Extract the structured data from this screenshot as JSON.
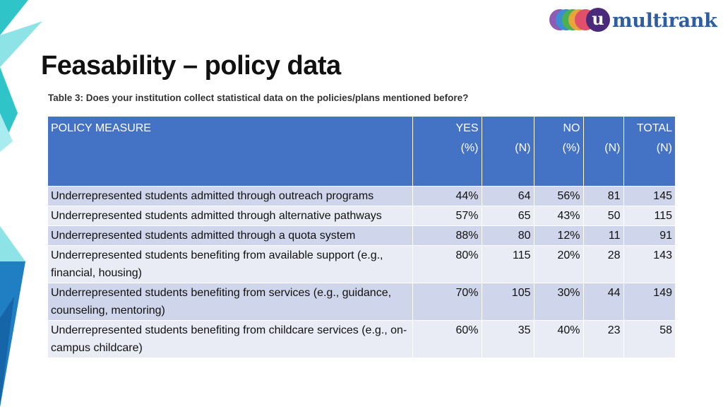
{
  "slide": {
    "title": "Feasability – policy data",
    "caption": "Table 3: Does your institution collect statistical data on the policies/plans mentioned before?"
  },
  "logo": {
    "mark": "u",
    "text": "multirank",
    "circle_colors": [
      "#8e5bb5",
      "#3c8ed4",
      "#4bb050",
      "#e8a63a",
      "#e24f6a"
    ],
    "mark_color": "#4a2a7a",
    "text_color": "#2e5e9e"
  },
  "colors": {
    "header_bg": "#4472c4",
    "row_odd": "#cfd5ea",
    "row_even": "#e9ebf5",
    "decor_teal": "#2ec4c8",
    "decor_blue": "#1f7fc2"
  },
  "table": {
    "headers": [
      {
        "line1": "POLICY MEASURE",
        "line2": ""
      },
      {
        "line1": "YES",
        "line2": "(%)"
      },
      {
        "line1": "",
        "line2": "(N)"
      },
      {
        "line1": "NO",
        "line2": "(%)"
      },
      {
        "line1": "",
        "line2": "(N)"
      },
      {
        "line1": "TOTAL",
        "line2": "(N)"
      }
    ],
    "rows": [
      {
        "measure": "Underrepresented students admitted through outreach programs",
        "yes_pct": "44%",
        "yes_n": "64",
        "no_pct": "56%",
        "no_n": "81",
        "total_n": "145"
      },
      {
        "measure": "Underrepresented students admitted through alternative pathways",
        "yes_pct": "57%",
        "yes_n": "65",
        "no_pct": "43%",
        "no_n": "50",
        "total_n": "115"
      },
      {
        "measure": "Underrepresented students admitted through a quota system",
        "yes_pct": "88%",
        "yes_n": "80",
        "no_pct": "12%",
        "no_n": "11",
        "total_n": "91"
      },
      {
        "measure": "Underrepresented students benefiting from available support (e.g., financial, housing)",
        "yes_pct": "80%",
        "yes_n": "115",
        "no_pct": "20%",
        "no_n": "28",
        "total_n": "143"
      },
      {
        "measure": "Underrepresented students benefiting from services (e.g., guidance, counseling, mentoring)",
        "yes_pct": "70%",
        "yes_n": "105",
        "no_pct": "30%",
        "no_n": "44",
        "total_n": "149"
      },
      {
        "measure": "Underrepresented students benefiting from childcare services (e.g., on-campus childcare)",
        "yes_pct": "60%",
        "yes_n": "35",
        "no_pct": "40%",
        "no_n": "23",
        "total_n": "58"
      }
    ]
  }
}
